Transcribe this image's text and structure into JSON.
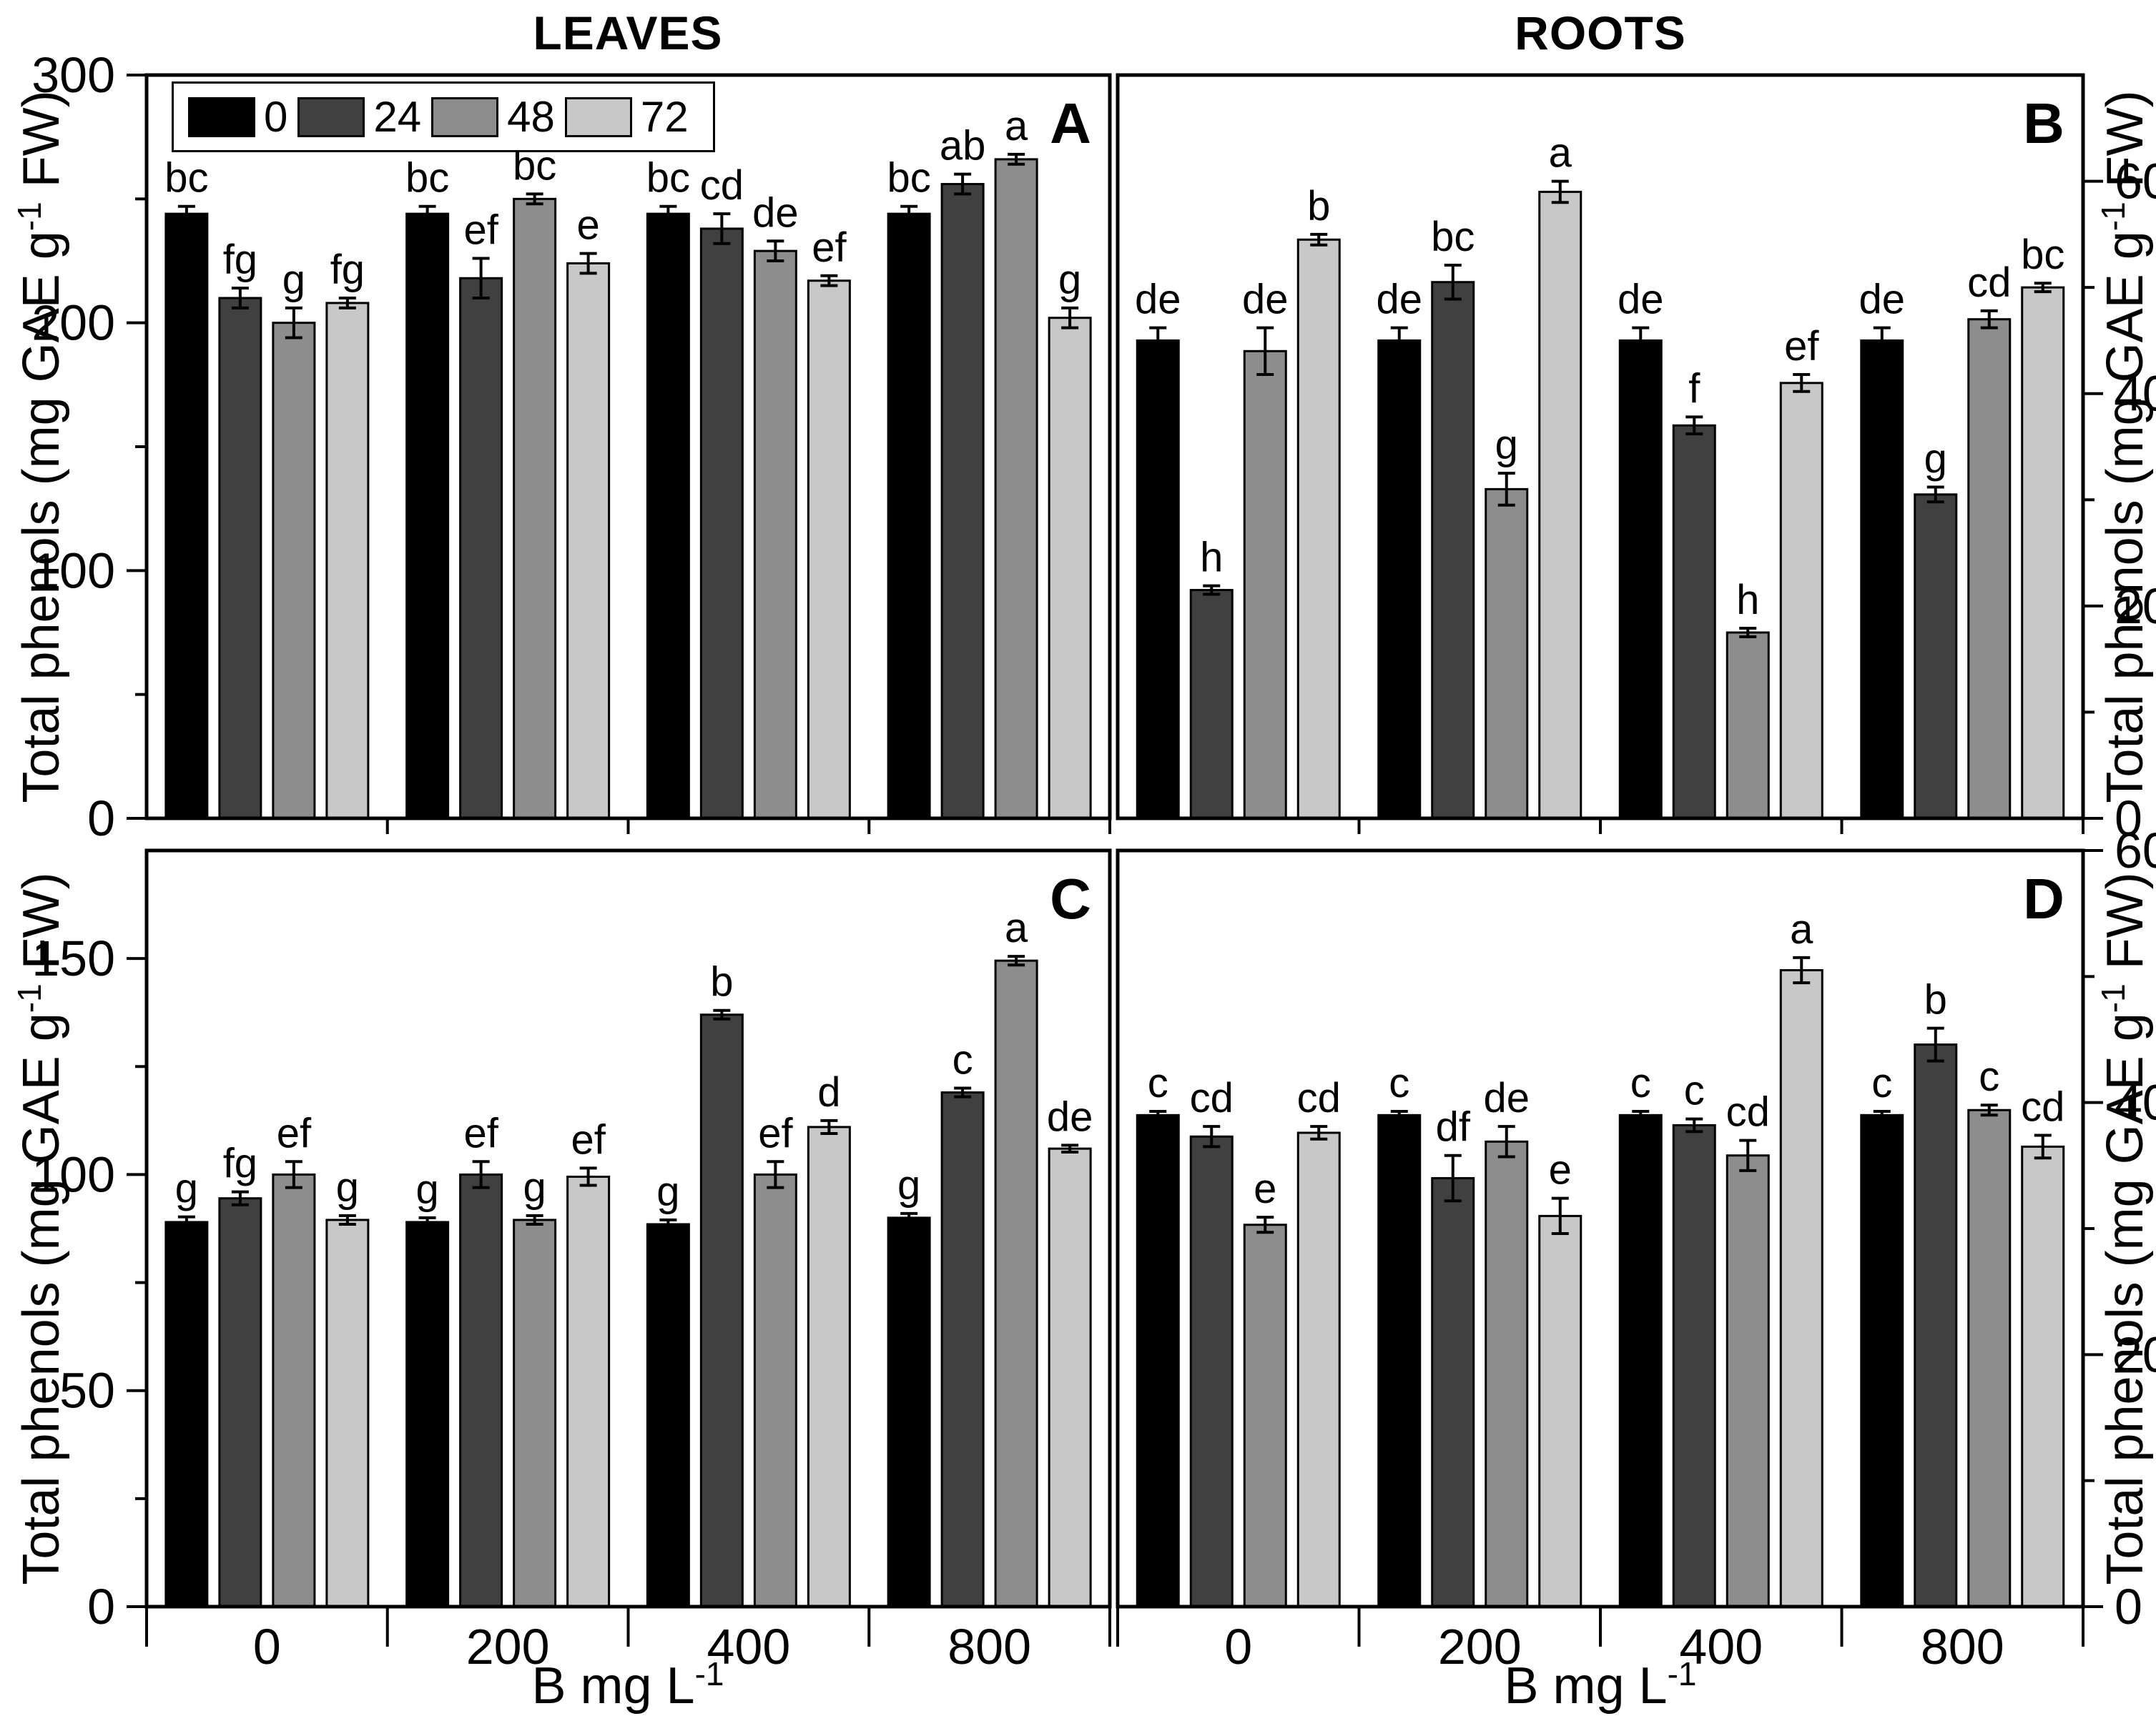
{
  "figure": {
    "column_titles": [
      "LEAVES",
      "ROOTS"
    ],
    "y_axis": {
      "main": "Total phenols (mg GAE g",
      "sup": "-1",
      "end": " FW)"
    },
    "x_axis": {
      "main": "B mg L",
      "sup": "-1"
    },
    "legend": {
      "labels": [
        "0",
        "24",
        "48",
        "72"
      ],
      "colors": [
        "#000000",
        "#404040",
        "#8d8d8d",
        "#c8c8c8"
      ]
    },
    "bar_border_color": "#000000"
  },
  "chart_data": [
    {
      "panel_label": "A",
      "type": "bar",
      "tissue": "LEAVES",
      "ylabel": "Total phenols (mg GAE g-1 FW)",
      "xlabel": "B mg L-1",
      "ylim": [
        0,
        300
      ],
      "yticks": [
        0,
        100,
        200,
        300
      ],
      "yticks_minor": [
        50,
        150,
        250
      ],
      "axis_side": "left",
      "categories": [
        "0",
        "200",
        "400",
        "800"
      ],
      "series": [
        "0",
        "24",
        "48",
        "72"
      ],
      "groups": [
        {
          "category": "0",
          "bars": [
            {
              "value": 244,
              "err": 3,
              "letter": "bc"
            },
            {
              "value": 210,
              "err": 4,
              "letter": "fg"
            },
            {
              "value": 200,
              "err": 6,
              "letter": "g"
            },
            {
              "value": 208,
              "err": 2,
              "letter": "fg"
            }
          ]
        },
        {
          "category": "200",
          "bars": [
            {
              "value": 244,
              "err": 3,
              "letter": "bc"
            },
            {
              "value": 218,
              "err": 8,
              "letter": "ef"
            },
            {
              "value": 250,
              "err": 2,
              "letter": "bc"
            },
            {
              "value": 224,
              "err": 4,
              "letter": "e"
            }
          ]
        },
        {
          "category": "400",
          "bars": [
            {
              "value": 244,
              "err": 3,
              "letter": "bc"
            },
            {
              "value": 238,
              "err": 6,
              "letter": "cd"
            },
            {
              "value": 229,
              "err": 4,
              "letter": "de"
            },
            {
              "value": 217,
              "err": 2,
              "letter": "ef"
            }
          ]
        },
        {
          "category": "800",
          "bars": [
            {
              "value": 244,
              "err": 3,
              "letter": "bc"
            },
            {
              "value": 256,
              "err": 4,
              "letter": "ab"
            },
            {
              "value": 266,
              "err": 2,
              "letter": "a"
            },
            {
              "value": 202,
              "err": 4,
              "letter": "g"
            }
          ]
        }
      ]
    },
    {
      "panel_label": "B",
      "type": "bar",
      "tissue": "ROOTS",
      "ylabel": "Total phenols (mg GAE g-1 FW)",
      "xlabel": "B mg L-1",
      "ylim": [
        0,
        70
      ],
      "yticks": [
        0,
        20,
        40,
        60
      ],
      "yticks_minor": [
        10,
        30,
        50
      ],
      "axis_side": "right",
      "categories": [
        "0",
        "200",
        "400",
        "800"
      ],
      "series": [
        "0",
        "24",
        "48",
        "72"
      ],
      "groups": [
        {
          "category": "0",
          "bars": [
            {
              "value": 45,
              "err": 1.2,
              "letter": "de"
            },
            {
              "value": 21.5,
              "err": 0.4,
              "letter": "h"
            },
            {
              "value": 44,
              "err": 2.2,
              "letter": "de"
            },
            {
              "value": 54.5,
              "err": 0.5,
              "letter": "b"
            }
          ]
        },
        {
          "category": "200",
          "bars": [
            {
              "value": 45,
              "err": 1.2,
              "letter": "de"
            },
            {
              "value": 50.5,
              "err": 1.6,
              "letter": "bc"
            },
            {
              "value": 31,
              "err": 1.5,
              "letter": "g"
            },
            {
              "value": 59,
              "err": 1,
              "letter": "a"
            }
          ]
        },
        {
          "category": "400",
          "bars": [
            {
              "value": 45,
              "err": 1.2,
              "letter": "de"
            },
            {
              "value": 37,
              "err": 0.8,
              "letter": "f"
            },
            {
              "value": 17.5,
              "err": 0.4,
              "letter": "h"
            },
            {
              "value": 41,
              "err": 0.8,
              "letter": "ef"
            }
          ]
        },
        {
          "category": "800",
          "bars": [
            {
              "value": 45,
              "err": 1.2,
              "letter": "de"
            },
            {
              "value": 30.5,
              "err": 0.7,
              "letter": "g"
            },
            {
              "value": 47,
              "err": 0.8,
              "letter": "cd"
            },
            {
              "value": 50,
              "err": 0.4,
              "letter": "bc"
            }
          ]
        }
      ]
    },
    {
      "panel_label": "C",
      "type": "bar",
      "tissue": "LEAVES",
      "ylabel": "Total phenols (mg GAE g-1 FW)",
      "xlabel": "B mg L-1",
      "ylim": [
        0,
        175
      ],
      "yticks": [
        0,
        50,
        100,
        150
      ],
      "yticks_minor": [
        25,
        75,
        125
      ],
      "axis_side": "left",
      "categories": [
        "0",
        "200",
        "400",
        "800"
      ],
      "series": [
        "0",
        "24",
        "48",
        "72"
      ],
      "groups": [
        {
          "category": "0",
          "bars": [
            {
              "value": 89,
              "err": 1.2,
              "letter": "g"
            },
            {
              "value": 94.5,
              "err": 1.5,
              "letter": "fg"
            },
            {
              "value": 100,
              "err": 3,
              "letter": "ef"
            },
            {
              "value": 89.5,
              "err": 1,
              "letter": "g"
            }
          ]
        },
        {
          "category": "200",
          "bars": [
            {
              "value": 89,
              "err": 1,
              "letter": "g"
            },
            {
              "value": 100,
              "err": 3,
              "letter": "ef"
            },
            {
              "value": 89.5,
              "err": 1,
              "letter": "g"
            },
            {
              "value": 99.5,
              "err": 2,
              "letter": "ef"
            }
          ]
        },
        {
          "category": "400",
          "bars": [
            {
              "value": 88.5,
              "err": 1,
              "letter": "g"
            },
            {
              "value": 137,
              "err": 1,
              "letter": "b"
            },
            {
              "value": 100,
              "err": 3,
              "letter": "ef"
            },
            {
              "value": 111,
              "err": 1.5,
              "letter": "d"
            }
          ]
        },
        {
          "category": "800",
          "bars": [
            {
              "value": 90,
              "err": 1,
              "letter": "g"
            },
            {
              "value": 119,
              "err": 1,
              "letter": "c"
            },
            {
              "value": 149.5,
              "err": 1,
              "letter": "a"
            },
            {
              "value": 106,
              "err": 0.8,
              "letter": "de"
            }
          ]
        }
      ]
    },
    {
      "panel_label": "D",
      "type": "bar",
      "tissue": "ROOTS",
      "ylabel": "Total phenols (mg GAE g-1 FW)",
      "xlabel": "B mg L-1",
      "ylim": [
        0,
        60
      ],
      "yticks": [
        0,
        20,
        40,
        60
      ],
      "yticks_minor": [
        10,
        30,
        50
      ],
      "axis_side": "right",
      "categories": [
        "0",
        "200",
        "400",
        "800"
      ],
      "series": [
        "0",
        "24",
        "48",
        "72"
      ],
      "groups": [
        {
          "category": "0",
          "bars": [
            {
              "value": 39,
              "err": 0.3,
              "letter": "c"
            },
            {
              "value": 37.3,
              "err": 0.8,
              "letter": "cd"
            },
            {
              "value": 30.3,
              "err": 0.6,
              "letter": "e"
            },
            {
              "value": 37.6,
              "err": 0.5,
              "letter": "cd"
            }
          ]
        },
        {
          "category": "200",
          "bars": [
            {
              "value": 39,
              "err": 0.3,
              "letter": "c"
            },
            {
              "value": 34,
              "err": 1.8,
              "letter": "df"
            },
            {
              "value": 36.9,
              "err": 1.2,
              "letter": "de"
            },
            {
              "value": 31,
              "err": 1.4,
              "letter": "e"
            }
          ]
        },
        {
          "category": "400",
          "bars": [
            {
              "value": 39,
              "err": 0.3,
              "letter": "c"
            },
            {
              "value": 38.2,
              "err": 0.5,
              "letter": "c"
            },
            {
              "value": 35.8,
              "err": 1.2,
              "letter": "cd"
            },
            {
              "value": 50.5,
              "err": 1,
              "letter": "a"
            }
          ]
        },
        {
          "category": "800",
          "bars": [
            {
              "value": 39,
              "err": 0.3,
              "letter": "c"
            },
            {
              "value": 44.6,
              "err": 1.3,
              "letter": "b"
            },
            {
              "value": 39.4,
              "err": 0.4,
              "letter": "c"
            },
            {
              "value": 36.5,
              "err": 0.9,
              "letter": "cd"
            }
          ]
        }
      ]
    }
  ]
}
